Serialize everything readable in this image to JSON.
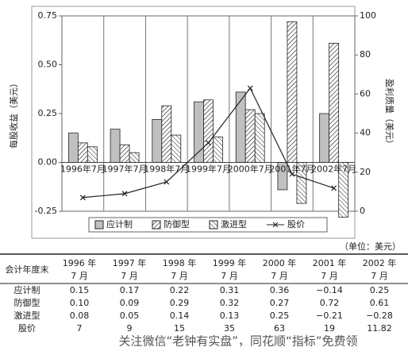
{
  "chart_data": {
    "type": "bar",
    "y_label": "每股收益（美元）",
    "y2_label": "盈利质量（美元）",
    "categories": [
      "1996年7月",
      "1997年7月",
      "1998年7月",
      "1999年7月",
      "2000年7月",
      "2001年7月",
      "2002年7月"
    ],
    "series": [
      {
        "name": "应计制",
        "color": "#c0c0c0",
        "hatch": "none",
        "values": [
          0.15,
          0.17,
          0.22,
          0.31,
          0.36,
          -0.14,
          0.25
        ]
      },
      {
        "name": "防御型",
        "color": "#222222",
        "hatch": "forward",
        "values": [
          0.1,
          0.09,
          0.29,
          0.32,
          0.27,
          0.72,
          0.61
        ]
      },
      {
        "name": "激进型",
        "color": "#222222",
        "hatch": "backward",
        "values": [
          0.08,
          0.05,
          0.14,
          0.13,
          0.25,
          -0.21,
          -0.28
        ]
      },
      {
        "name": "股价",
        "type": "line",
        "axis": "y2",
        "marker": "x",
        "color": "#222222",
        "values": [
          7,
          9,
          15,
          35,
          63,
          19,
          11.82
        ]
      }
    ],
    "ylim": [
      -0.25,
      0.75
    ],
    "yticks": [
      {
        "value": 0.75,
        "label": "0.75"
      },
      {
        "value": 0.5,
        "label": "0.50"
      },
      {
        "value": 0.25,
        "label": "0.25"
      },
      {
        "value": 0,
        "label": "0.00"
      },
      {
        "value": -0.25,
        "label": "-0.25"
      }
    ],
    "y2lim": [
      0,
      100
    ],
    "y2ticks": [
      0,
      20,
      40,
      60,
      80,
      100
    ],
    "grid": true,
    "legend": "bottom"
  },
  "table": {
    "unit": "（单位：美元）",
    "header": [
      "会计年度末",
      [
        "1996 年",
        "7 月"
      ],
      [
        "1997 年",
        "7 月"
      ],
      [
        "1998 年",
        "7 月"
      ],
      [
        "1999 年",
        "7 月"
      ],
      [
        "2000 年",
        "7 月"
      ],
      [
        "2001 年",
        "7 月"
      ],
      [
        "2002 年",
        "7 月"
      ]
    ],
    "rows": [
      [
        "应计制",
        "0.15",
        "0.17",
        "0.22",
        "0.31",
        "0.36",
        "−0.14",
        "0.25"
      ],
      [
        "防御型",
        "0.10",
        "0.09",
        "0.29",
        "0.32",
        "0.27",
        "0.72",
        "0.61"
      ],
      [
        "激进型",
        "0.08",
        "0.05",
        "0.14",
        "0.13",
        "0.25",
        "−0.21",
        "−0.28"
      ],
      [
        "股价",
        "7",
        "9",
        "15",
        "35",
        "63",
        "19",
        "11.82"
      ]
    ]
  },
  "watermark": "关注微信“老钟有实盘”，同花顺“指标”免费领"
}
